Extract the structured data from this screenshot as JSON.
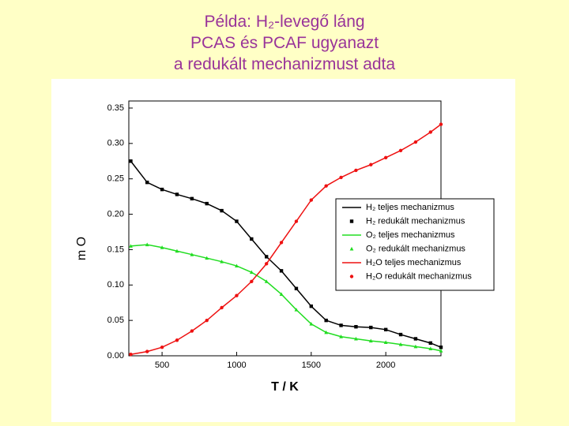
{
  "chart_data": {
    "type": "line",
    "title": [
      "Példa: H₂-levegő láng",
      "PCAS és PCAF ugyanazt",
      "a redukált mechanizmust adta"
    ],
    "x_label": "T / K",
    "y_label": "m O",
    "x": [
      290,
      400,
      500,
      600,
      700,
      800,
      900,
      1000,
      1100,
      1200,
      1300,
      1400,
      1500,
      1600,
      1700,
      1800,
      1900,
      2000,
      2100,
      2200,
      2300,
      2370
    ],
    "series": [
      {
        "name": "H₂ teljes mechanizmus",
        "color": "#000000",
        "style": "line",
        "values": [
          0.275,
          0.245,
          0.235,
          0.228,
          0.222,
          0.215,
          0.205,
          0.19,
          0.165,
          0.14,
          0.12,
          0.095,
          0.07,
          0.05,
          0.043,
          0.041,
          0.04,
          0.037,
          0.03,
          0.024,
          0.018,
          0.012
        ]
      },
      {
        "name": "H₂ redukált mechanizmus",
        "color": "#000000",
        "style": "square",
        "values": [
          0.275,
          0.245,
          0.235,
          0.228,
          0.222,
          0.215,
          0.205,
          0.19,
          0.165,
          0.14,
          0.12,
          0.095,
          0.07,
          0.05,
          0.043,
          0.041,
          0.04,
          0.037,
          0.03,
          0.024,
          0.018,
          0.012
        ]
      },
      {
        "name": "O₂ teljes mechanizmus",
        "color": "#22dd22",
        "style": "line",
        "values": [
          0.155,
          0.157,
          0.153,
          0.148,
          0.143,
          0.138,
          0.133,
          0.127,
          0.118,
          0.105,
          0.087,
          0.065,
          0.045,
          0.033,
          0.027,
          0.024,
          0.021,
          0.019,
          0.016,
          0.013,
          0.01,
          0.007
        ]
      },
      {
        "name": "O₂ redukált mechanizmus",
        "color": "#22dd22",
        "style": "triangle",
        "values": [
          0.155,
          0.157,
          0.153,
          0.148,
          0.143,
          0.138,
          0.133,
          0.127,
          0.118,
          0.105,
          0.087,
          0.065,
          0.045,
          0.033,
          0.027,
          0.024,
          0.021,
          0.019,
          0.016,
          0.013,
          0.01,
          0.007
        ]
      },
      {
        "name": "H₂O teljes mechanizmus",
        "color": "#ee1111",
        "style": "line",
        "values": [
          0.002,
          0.006,
          0.012,
          0.022,
          0.035,
          0.05,
          0.068,
          0.085,
          0.105,
          0.13,
          0.16,
          0.19,
          0.22,
          0.24,
          0.252,
          0.262,
          0.27,
          0.28,
          0.29,
          0.302,
          0.316,
          0.327
        ]
      },
      {
        "name": "H₂O redukált mechanizmus",
        "color": "#ee1111",
        "style": "circle",
        "values": [
          0.002,
          0.006,
          0.012,
          0.022,
          0.035,
          0.05,
          0.068,
          0.085,
          0.105,
          0.13,
          0.16,
          0.19,
          0.22,
          0.24,
          0.252,
          0.262,
          0.27,
          0.28,
          0.29,
          0.302,
          0.316,
          0.327
        ]
      }
    ],
    "xlim": [
      277,
      2370
    ],
    "xticks": [
      500,
      1000,
      1500,
      2000
    ],
    "ylim": [
      0,
      0.36
    ],
    "yticks": [
      {
        "value": 0,
        "label": "0.00"
      },
      {
        "value": 0.05,
        "label": "0.05"
      },
      {
        "value": 0.1,
        "label": "0.10"
      },
      {
        "value": 0.15,
        "label": "0.15"
      },
      {
        "value": 0.2,
        "label": "0.20"
      },
      {
        "value": 0.25,
        "label": "0.25"
      },
      {
        "value": 0.3,
        "label": "0.30"
      },
      {
        "value": 0.35,
        "label": "0.35"
      }
    ],
    "legend": "right"
  }
}
